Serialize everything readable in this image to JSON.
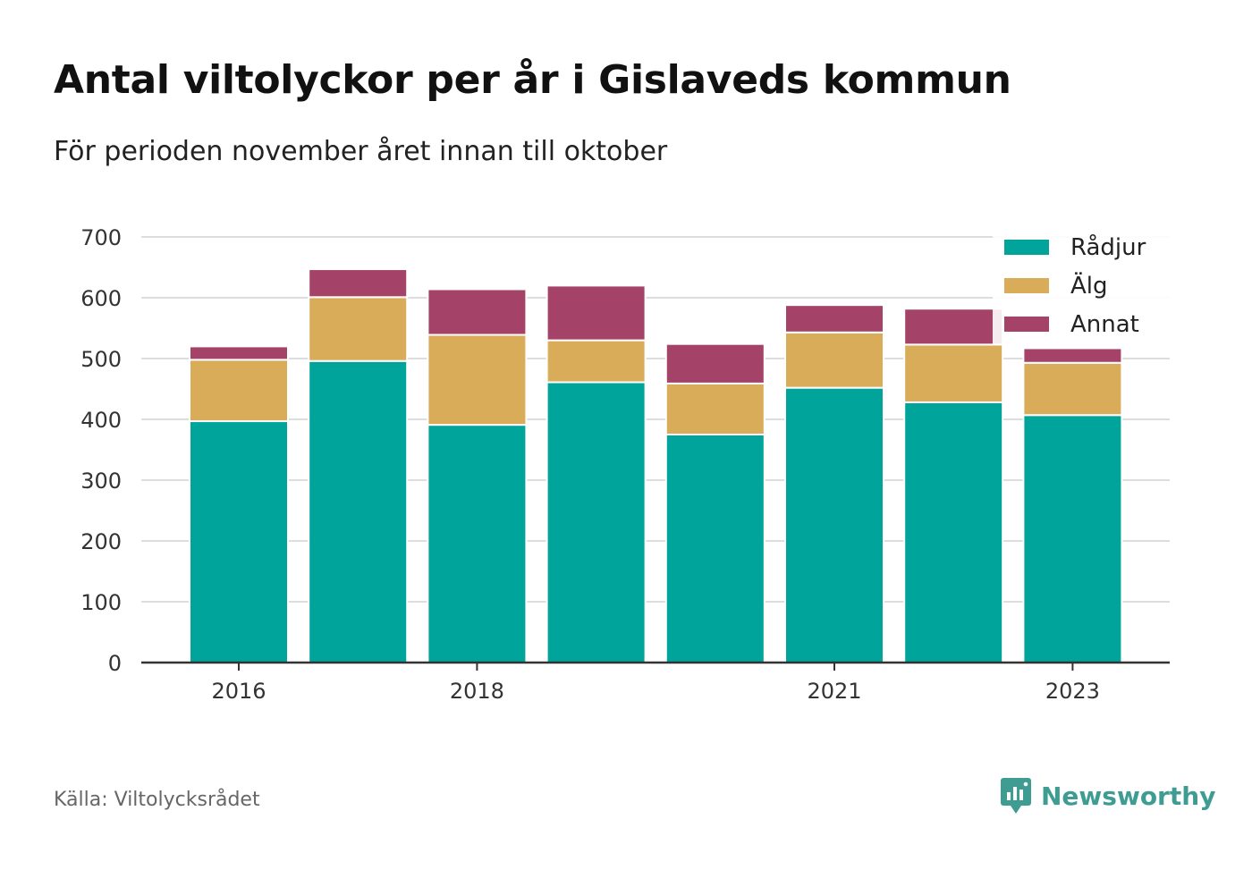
{
  "title": "Antal viltolyckor per år i Gislaveds kommun",
  "subtitle": "För perioden november året innan till oktober",
  "source": "Källa: Viltolycksrådet",
  "brand": "Newsworthy",
  "colors": {
    "radjur": "#00a49a",
    "alg": "#d9ac5a",
    "annat": "#a44268",
    "grid": "#dddddd",
    "axis": "#333333",
    "brand": "#3e9c93"
  },
  "chart_data": {
    "type": "bar",
    "stacked": true,
    "categories": [
      "2016",
      "2017",
      "2018",
      "2019",
      "2020",
      "2021",
      "2022",
      "2023"
    ],
    "x_tick_labels": [
      "2016",
      "2018",
      "2021",
      "2023"
    ],
    "series": [
      {
        "name": "Rådjur",
        "color": "#00a49a",
        "values": [
          397,
          496,
          391,
          461,
          375,
          452,
          428,
          407
        ]
      },
      {
        "name": "Älg",
        "color": "#d9ac5a",
        "values": [
          101,
          105,
          148,
          69,
          84,
          91,
          95,
          86
        ]
      },
      {
        "name": "Annat",
        "color": "#a44268",
        "values": [
          22,
          46,
          75,
          90,
          65,
          45,
          59,
          24
        ]
      }
    ],
    "ylim": [
      0,
      700
    ],
    "yticks": [
      0,
      100,
      200,
      300,
      400,
      500,
      600,
      700
    ],
    "grid": true,
    "legend_position": "top-right"
  }
}
